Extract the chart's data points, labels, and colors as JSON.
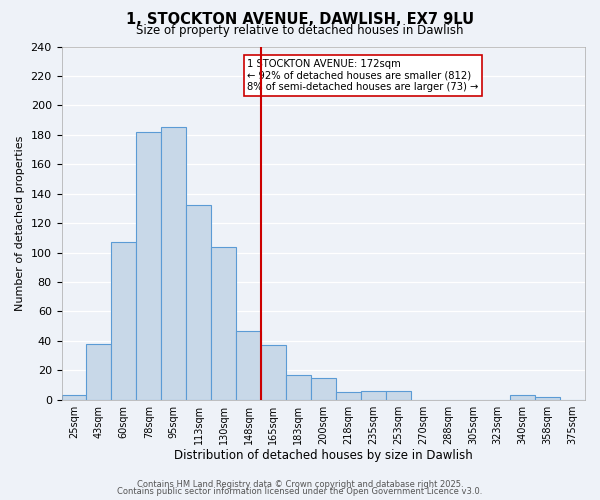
{
  "title": "1, STOCKTON AVENUE, DAWLISH, EX7 9LU",
  "subtitle": "Size of property relative to detached houses in Dawlish",
  "xlabel": "Distribution of detached houses by size in Dawlish",
  "ylabel": "Number of detached properties",
  "bar_color": "#c8d8e8",
  "bar_edge_color": "#5b9bd5",
  "background_color": "#eef2f8",
  "grid_color": "#d8dfe8",
  "bin_labels": [
    "25sqm",
    "43sqm",
    "60sqm",
    "78sqm",
    "95sqm",
    "113sqm",
    "130sqm",
    "148sqm",
    "165sqm",
    "183sqm",
    "200sqm",
    "218sqm",
    "235sqm",
    "253sqm",
    "270sqm",
    "288sqm",
    "305sqm",
    "323sqm",
    "340sqm",
    "358sqm",
    "375sqm"
  ],
  "bar_values": [
    3,
    38,
    107,
    182,
    185,
    132,
    104,
    47,
    37,
    17,
    15,
    5,
    6,
    6,
    0,
    0,
    0,
    0,
    3,
    2,
    0
  ],
  "vline_index": 8,
  "vline_color": "#cc0000",
  "annotation_title": "1 STOCKTON AVENUE: 172sqm",
  "annotation_line1": "← 92% of detached houses are smaller (812)",
  "annotation_line2": "8% of semi-detached houses are larger (73) →",
  "annotation_box_color": "#cc0000",
  "ylim": [
    0,
    240
  ],
  "yticks": [
    0,
    20,
    40,
    60,
    80,
    100,
    120,
    140,
    160,
    180,
    200,
    220,
    240
  ],
  "footer_line1": "Contains HM Land Registry data © Crown copyright and database right 2025.",
  "footer_line2": "Contains public sector information licensed under the Open Government Licence v3.0."
}
